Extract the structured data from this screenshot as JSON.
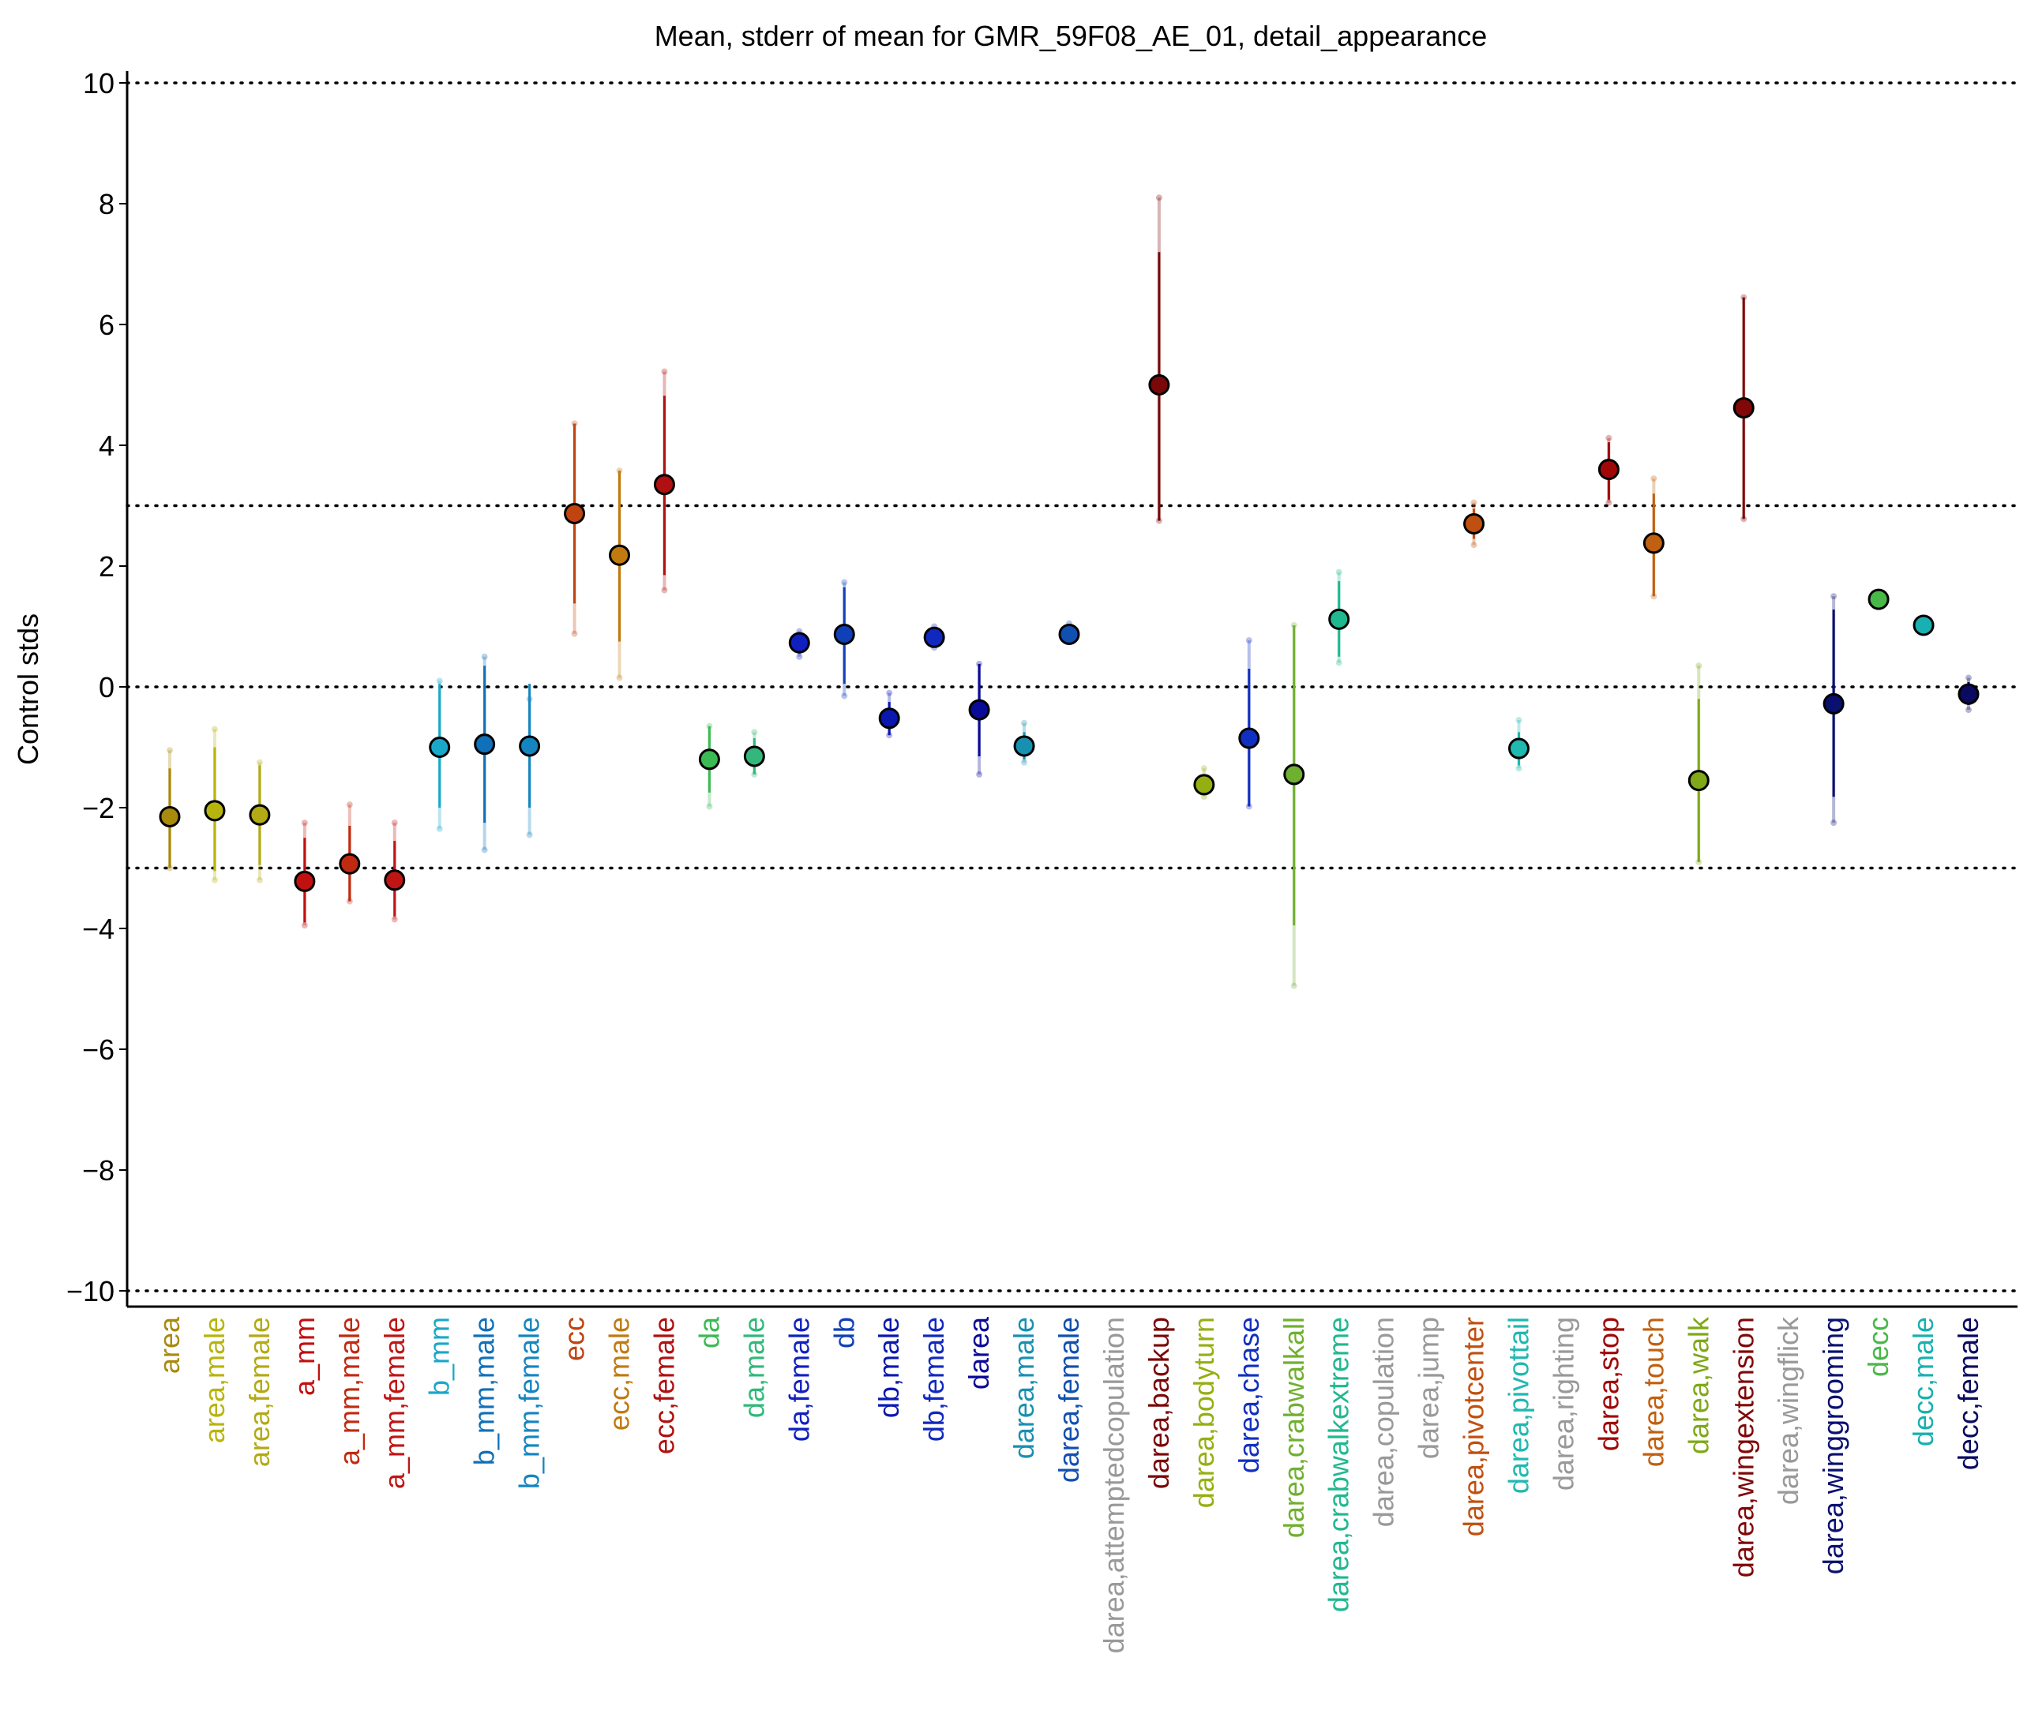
{
  "chart_data": {
    "type": "scatter",
    "title": "Mean, stderr of mean for GMR_59F08_AE_01, detail_appearance",
    "ylabel": "Control stds",
    "xlabel": "",
    "ylim": [
      -10.2,
      10.2
    ],
    "yticks": [
      -10,
      -8,
      -6,
      -4,
      -2,
      0,
      2,
      4,
      6,
      8,
      10
    ],
    "ytick_labels": [
      "−10",
      "−8",
      "−6",
      "−4",
      "−2",
      "0",
      "2",
      "4",
      "6",
      "8",
      "10"
    ],
    "reference_lines": [
      -10,
      -3,
      0,
      3,
      10
    ],
    "grid": false,
    "legend": "none",
    "points": [
      {
        "label": "area",
        "color": "#a88a0c",
        "mean": -2.15,
        "err_lo": -3.0,
        "err_hi": -1.35,
        "ext_lo": -3.0,
        "ext_hi": -1.05
      },
      {
        "label": "area,male",
        "color": "#b8b40e",
        "mean": -2.05,
        "err_lo": -3.05,
        "err_hi": -1.0,
        "ext_lo": -3.2,
        "ext_hi": -0.7
      },
      {
        "label": "area,female",
        "color": "#b3aa14",
        "mean": -2.12,
        "err_lo": -2.95,
        "err_hi": -1.3,
        "ext_lo": -3.2,
        "ext_hi": -1.25
      },
      {
        "label": "a_mm",
        "color": "#c01010",
        "mean": -3.22,
        "err_lo": -3.9,
        "err_hi": -2.5,
        "ext_lo": -3.95,
        "ext_hi": -2.25
      },
      {
        "label": "a_mm,male",
        "color": "#c02a10",
        "mean": -2.93,
        "err_lo": -3.55,
        "err_hi": -2.3,
        "ext_lo": -3.55,
        "ext_hi": -1.95
      },
      {
        "label": "a_mm,female",
        "color": "#c01515",
        "mean": -3.2,
        "err_lo": -3.8,
        "err_hi": -2.55,
        "ext_lo": -3.85,
        "ext_hi": -2.25
      },
      {
        "label": "b_mm",
        "color": "#1aa8c8",
        "mean": -1.0,
        "err_lo": -2.0,
        "err_hi": 0.05,
        "ext_lo": -2.35,
        "ext_hi": 0.1
      },
      {
        "label": "b_mm,male",
        "color": "#1070b8",
        "mean": -0.95,
        "err_lo": -2.25,
        "err_hi": 0.35,
        "ext_lo": -2.7,
        "ext_hi": 0.5
      },
      {
        "label": "b_mm,female",
        "color": "#1585c0",
        "mean": -0.98,
        "err_lo": -2.0,
        "err_hi": 0.05,
        "ext_lo": -2.45,
        "ext_hi": -0.2
      },
      {
        "label": "ecc",
        "color": "#c04410",
        "mean": 2.87,
        "err_lo": 1.38,
        "err_hi": 4.36,
        "ext_lo": 0.88,
        "ext_hi": 4.36
      },
      {
        "label": "ecc,male",
        "color": "#c07a10",
        "mean": 2.18,
        "err_lo": 0.75,
        "err_hi": 3.58,
        "ext_lo": 0.15,
        "ext_hi": 3.58
      },
      {
        "label": "ecc,female",
        "color": "#b01010",
        "mean": 3.35,
        "err_lo": 1.85,
        "err_hi": 4.82,
        "ext_lo": 1.6,
        "ext_hi": 5.22
      },
      {
        "label": "da",
        "color": "#3cba54",
        "mean": -1.2,
        "err_lo": -1.75,
        "err_hi": -0.65,
        "ext_lo": -1.98,
        "ext_hi": -0.65
      },
      {
        "label": "da,male",
        "color": "#32b87a",
        "mean": -1.15,
        "err_lo": -1.45,
        "err_hi": -0.85,
        "ext_lo": -1.45,
        "ext_hi": -0.75
      },
      {
        "label": "da,female",
        "color": "#1020c0",
        "mean": 0.73,
        "err_lo": 0.55,
        "err_hi": 0.9,
        "ext_lo": 0.5,
        "ext_hi": 0.92
      },
      {
        "label": "db",
        "color": "#1040b8",
        "mean": 0.87,
        "err_lo": 0.05,
        "err_hi": 1.65,
        "ext_lo": -0.15,
        "ext_hi": 1.73
      },
      {
        "label": "db,male",
        "color": "#0a18b0",
        "mean": -0.52,
        "err_lo": -0.8,
        "err_hi": -0.25,
        "ext_lo": -0.8,
        "ext_hi": -0.1
      },
      {
        "label": "db,female",
        "color": "#1028c0",
        "mean": 0.82,
        "err_lo": 0.7,
        "err_hi": 0.95,
        "ext_lo": 0.65,
        "ext_hi": 1.0
      },
      {
        "label": "darea",
        "color": "#0a0a98",
        "mean": -0.38,
        "err_lo": -1.15,
        "err_hi": 0.38,
        "ext_lo": -1.45,
        "ext_hi": 0.38
      },
      {
        "label": "darea,male",
        "color": "#1890b0",
        "mean": -0.98,
        "err_lo": -1.2,
        "err_hi": -0.75,
        "ext_lo": -1.25,
        "ext_hi": -0.6
      },
      {
        "label": "darea,female",
        "color": "#1050b0",
        "mean": 0.87,
        "err_lo": 0.78,
        "err_hi": 0.97,
        "ext_lo": 0.78,
        "ext_hi": 1.05
      },
      {
        "label": "darea,attemptedcopulation",
        "color": "#999999",
        "mean": null
      },
      {
        "label": "darea,backup",
        "color": "#7a0808",
        "mean": 5.0,
        "err_lo": 2.75,
        "err_hi": 7.2,
        "ext_lo": 2.75,
        "ext_hi": 8.1
      },
      {
        "label": "darea,bodyturn",
        "color": "#94b010",
        "mean": -1.62,
        "err_lo": -1.78,
        "err_hi": -1.45,
        "ext_lo": -1.82,
        "ext_hi": -1.35
      },
      {
        "label": "darea,chase",
        "color": "#1030c0",
        "mean": -0.85,
        "err_lo": -1.98,
        "err_hi": 0.3,
        "ext_lo": -1.98,
        "ext_hi": 0.77
      },
      {
        "label": "darea,crabwalkall",
        "color": "#70b030",
        "mean": -1.45,
        "err_lo": -3.95,
        "err_hi": 1.02,
        "ext_lo": -4.95,
        "ext_hi": 1.02
      },
      {
        "label": "darea,crabwalkextreme",
        "color": "#20b890",
        "mean": 1.12,
        "err_lo": 0.5,
        "err_hi": 1.75,
        "ext_lo": 0.4,
        "ext_hi": 1.9
      },
      {
        "label": "darea,copulation",
        "color": "#999999",
        "mean": null
      },
      {
        "label": "darea,jump",
        "color": "#999999",
        "mean": null
      },
      {
        "label": "darea,pivotcenter",
        "color": "#c05010",
        "mean": 2.7,
        "err_lo": 2.45,
        "err_hi": 2.95,
        "ext_lo": 2.35,
        "ext_hi": 3.05
      },
      {
        "label": "darea,pivottail",
        "color": "#20b8b0",
        "mean": -1.02,
        "err_lo": -1.3,
        "err_hi": -0.75,
        "ext_lo": -1.35,
        "ext_hi": -0.55
      },
      {
        "label": "darea,righting",
        "color": "#999999",
        "mean": null
      },
      {
        "label": "darea,stop",
        "color": "#a00808",
        "mean": 3.6,
        "err_lo": 3.1,
        "err_hi": 4.05,
        "ext_lo": 3.05,
        "ext_hi": 4.12
      },
      {
        "label": "darea,touch",
        "color": "#c06010",
        "mean": 2.38,
        "err_lo": 1.5,
        "err_hi": 3.2,
        "ext_lo": 1.5,
        "ext_hi": 3.45
      },
      {
        "label": "darea,walk",
        "color": "#80a818",
        "mean": -1.55,
        "err_lo": -2.9,
        "err_hi": -0.2,
        "ext_lo": -2.9,
        "ext_hi": 0.35
      },
      {
        "label": "darea,wingextension",
        "color": "#800808",
        "mean": 4.62,
        "err_lo": 2.78,
        "err_hi": 6.45,
        "ext_lo": 2.78,
        "ext_hi": 6.45
      },
      {
        "label": "darea,wingflick",
        "color": "#999999",
        "mean": null
      },
      {
        "label": "darea,winggrooming",
        "color": "#0a1070",
        "mean": -0.28,
        "err_lo": -1.82,
        "err_hi": 1.28,
        "ext_lo": -2.25,
        "ext_hi": 1.5
      },
      {
        "label": "decc",
        "color": "#4ab848",
        "mean": 1.45,
        "err_lo": 1.4,
        "err_hi": 1.5,
        "ext_lo": 1.4,
        "ext_hi": 1.5
      },
      {
        "label": "decc,male",
        "color": "#18b0b0",
        "mean": 1.02,
        "err_lo": 0.98,
        "err_hi": 1.06,
        "ext_lo": 0.98,
        "ext_hi": 1.06
      },
      {
        "label": "decc,female",
        "color": "#0a0a60",
        "mean": -0.12,
        "err_lo": -0.3,
        "err_hi": 0.08,
        "ext_lo": -0.38,
        "ext_hi": 0.15
      }
    ]
  }
}
